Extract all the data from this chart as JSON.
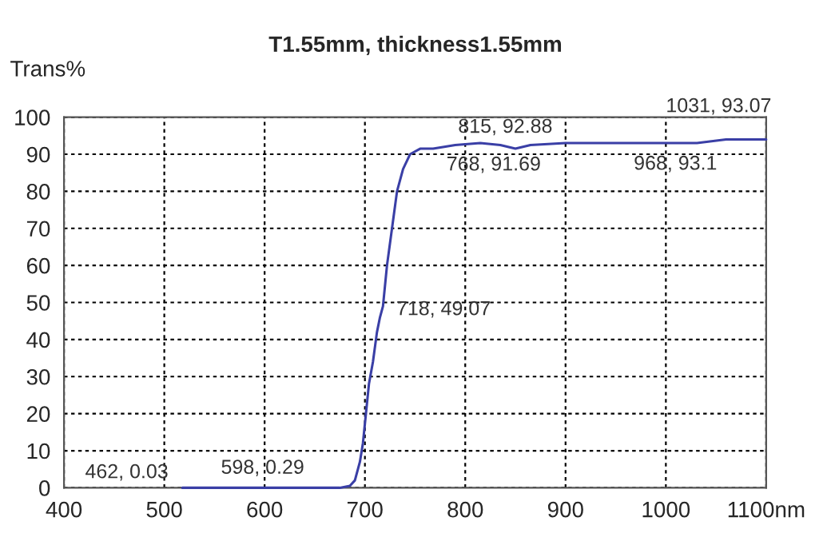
{
  "chart_data": {
    "type": "line",
    "title": "T1.55mm, thickness1.55mm",
    "ylabel": "Trans%",
    "series": [
      {
        "color": "#3a3fa6",
        "x": [
          518,
          560,
          600,
          640,
          660,
          675,
          685,
          690,
          695,
          698,
          701,
          704,
          708,
          712,
          715,
          718,
          722,
          727,
          732,
          738,
          745,
          755,
          768,
          790,
          815,
          835,
          850,
          865,
          900,
          940,
          968,
          1000,
          1016,
          1031,
          1060,
          1100
        ],
        "values": [
          0,
          0,
          0,
          0,
          0,
          0,
          0.5,
          2,
          7,
          12,
          20,
          28,
          34,
          42,
          46,
          49,
          60,
          70,
          80,
          86,
          90,
          91.5,
          91.5,
          92.5,
          93,
          92.5,
          91.5,
          92.5,
          93,
          93,
          93,
          93,
          93,
          93,
          94,
          94
        ]
      }
    ],
    "xlim": [
      400,
      1100
    ],
    "ylim": [
      0,
      100
    ],
    "xticks": [
      400,
      500,
      600,
      700,
      800,
      900,
      1000,
      {
        "value": 1100,
        "label": "1100nm"
      }
    ],
    "yticks": [
      0,
      10,
      20,
      30,
      40,
      50,
      60,
      70,
      80,
      90,
      100
    ],
    "grid": true,
    "marker": "none",
    "line_style": "solid",
    "legend": false,
    "annotations": [
      "462, 0.03",
      {
        "text": "598, 0.29",
        "x": 598,
        "y": 0.29
      },
      {
        "text": "718, 49.07",
        "x": 718,
        "y": 49.07
      },
      {
        "text": "768, 91.69",
        "x": 768,
        "y": 91.69
      },
      {
        "text": "815, 92.88",
        "x": 815,
        "y": 92.88
      },
      {
        "text": "968, 93.1",
        "x": 968,
        "y": 93.1
      },
      {
        "text": "1031, 93.07",
        "x": 1031,
        "y": 93.07
      }
    ]
  }
}
